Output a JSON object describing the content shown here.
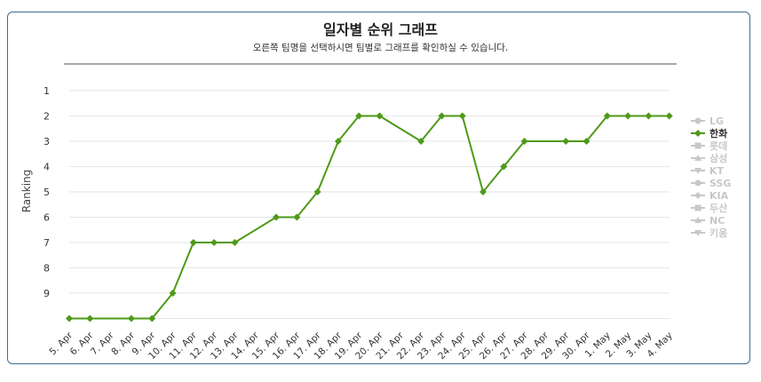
{
  "chart_data": {
    "type": "line",
    "title": "일자별 순위 그래프",
    "subtitle": "오른쪽 팀명을 선택하시면 팀별로 그래프를 확인하실 수 있습니다.",
    "ylabel": "Ranking",
    "xlabel": "",
    "y_ticks": [
      "1",
      "2",
      "3",
      "4",
      "5",
      "6",
      "7",
      "8",
      "9"
    ],
    "y_range": [
      1,
      10
    ],
    "y_reversed": true,
    "grid": true,
    "legend_position": "right",
    "categories": [
      "5. Apr",
      "6. Apr",
      "7. Apr",
      "8. Apr",
      "9. Apr",
      "10. Apr",
      "11. Apr",
      "12. Apr",
      "13. Apr",
      "14. Apr",
      "15. Apr",
      "16. Apr",
      "17. Apr",
      "18. Apr",
      "19. Apr",
      "20. Apr",
      "21. Apr",
      "22. Apr",
      "23. Apr",
      "24. Apr",
      "25. Apr",
      "26. Apr",
      "27. Apr",
      "28. Apr",
      "29. Apr",
      "30. Apr",
      "1. May",
      "2. May",
      "3. May",
      "4. May"
    ],
    "series": [
      {
        "name": "한화",
        "color": "#4e9a18",
        "points": [
          {
            "x": "5. Apr",
            "y": 10
          },
          {
            "x": "6. Apr",
            "y": 10
          },
          {
            "x": "8. Apr",
            "y": 10
          },
          {
            "x": "9. Apr",
            "y": 10
          },
          {
            "x": "10. Apr",
            "y": 9
          },
          {
            "x": "11. Apr",
            "y": 7
          },
          {
            "x": "12. Apr",
            "y": 7
          },
          {
            "x": "13. Apr",
            "y": 7
          },
          {
            "x": "15. Apr",
            "y": 6
          },
          {
            "x": "16. Apr",
            "y": 6
          },
          {
            "x": "17. Apr",
            "y": 5
          },
          {
            "x": "18. Apr",
            "y": 3
          },
          {
            "x": "19. Apr",
            "y": 2
          },
          {
            "x": "20. Apr",
            "y": 2
          },
          {
            "x": "22. Apr",
            "y": 3
          },
          {
            "x": "23. Apr",
            "y": 2
          },
          {
            "x": "24. Apr",
            "y": 2
          },
          {
            "x": "25. Apr",
            "y": 5
          },
          {
            "x": "26. Apr",
            "y": 4
          },
          {
            "x": "27. Apr",
            "y": 3
          },
          {
            "x": "29. Apr",
            "y": 3
          },
          {
            "x": "30. Apr",
            "y": 3
          },
          {
            "x": "1. May",
            "y": 2
          },
          {
            "x": "2. May",
            "y": 2
          },
          {
            "x": "3. May",
            "y": 2
          },
          {
            "x": "4. May",
            "y": 2
          }
        ]
      }
    ],
    "legend": [
      {
        "name": "LG",
        "marker": "circle",
        "active": false
      },
      {
        "name": "한화",
        "marker": "diamond",
        "active": true
      },
      {
        "name": "롯데",
        "marker": "square",
        "active": false
      },
      {
        "name": "삼성",
        "marker": "triangle",
        "active": false
      },
      {
        "name": "KT",
        "marker": "triangle-down",
        "active": false
      },
      {
        "name": "SSG",
        "marker": "circle",
        "active": false
      },
      {
        "name": "KIA",
        "marker": "diamond",
        "active": false
      },
      {
        "name": "두산",
        "marker": "square",
        "active": false
      },
      {
        "name": "NC",
        "marker": "triangle",
        "active": false
      },
      {
        "name": "키움",
        "marker": "triangle-down",
        "active": false
      }
    ],
    "colors": {
      "active": "#4e9a18",
      "inactive": "#c8c8c8",
      "active_text": "#333333"
    }
  }
}
